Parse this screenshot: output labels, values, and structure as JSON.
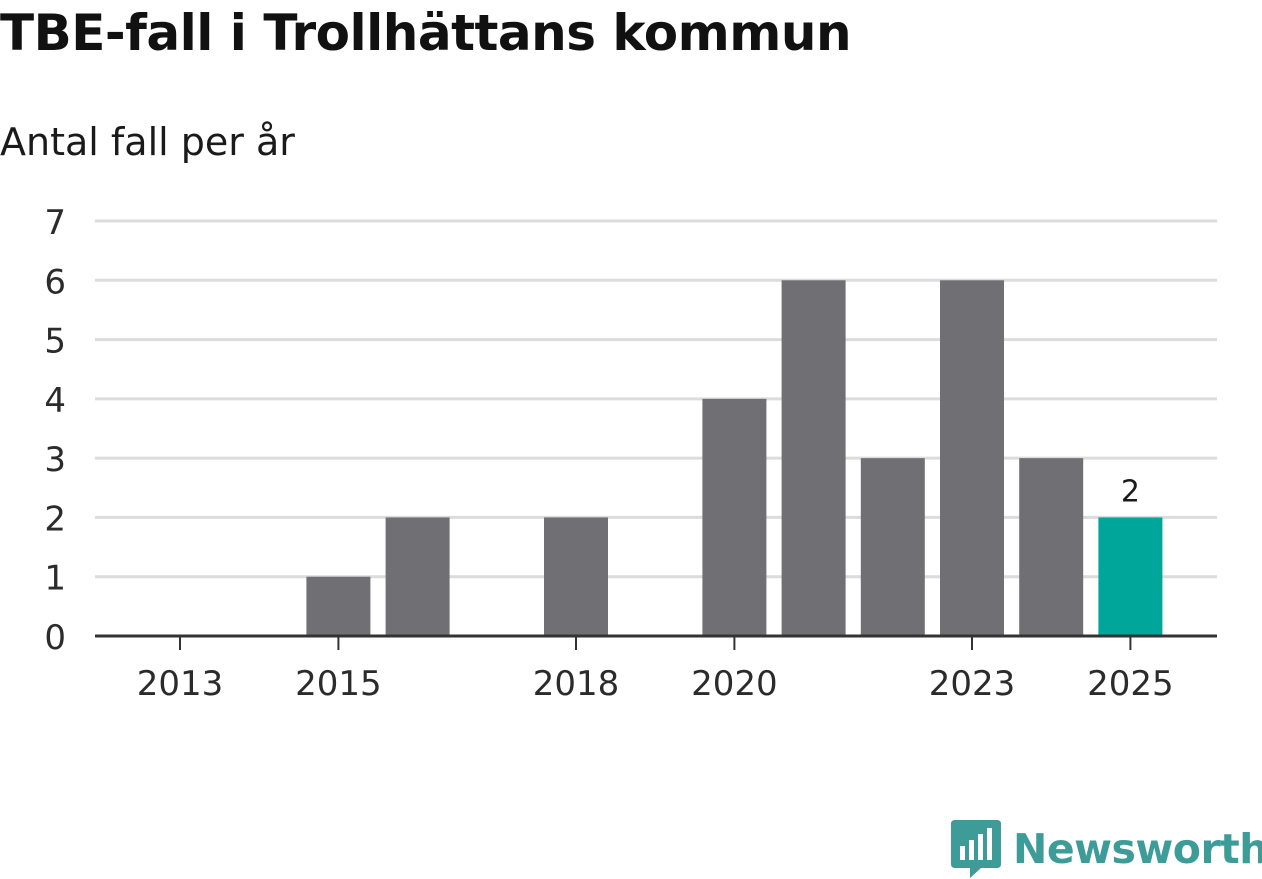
{
  "title": "TBE-fall i Trollhättans kommun",
  "subtitle": "Antal fall per år",
  "colors": {
    "bar": "#706f74",
    "highlight": "#00a69a",
    "grid": "#dcdcdc",
    "axis": "#333333",
    "brand": "#3d9c98"
  },
  "brand": {
    "name": "Newsworthy",
    "icon": "newsworthy-logo-icon"
  },
  "chart_data": {
    "type": "bar",
    "categories": [
      "2013",
      "2014",
      "2015",
      "2016",
      "2017",
      "2018",
      "2019",
      "2020",
      "2021",
      "2022",
      "2023",
      "2024",
      "2025"
    ],
    "values": [
      0,
      0,
      1,
      2,
      0,
      2,
      0,
      4,
      6,
      3,
      6,
      3,
      2
    ],
    "x_tick_labels": [
      "2013",
      "2015",
      "2018",
      "2020",
      "2023",
      "2025"
    ],
    "y_ticks": [
      0,
      1,
      2,
      3,
      4,
      5,
      6,
      7
    ],
    "ylim": [
      0,
      7
    ],
    "highlight_category": "2025",
    "data_labels": [
      {
        "category": "2025",
        "text": "2"
      }
    ],
    "grid": true,
    "xlabel": "",
    "ylabel": ""
  }
}
